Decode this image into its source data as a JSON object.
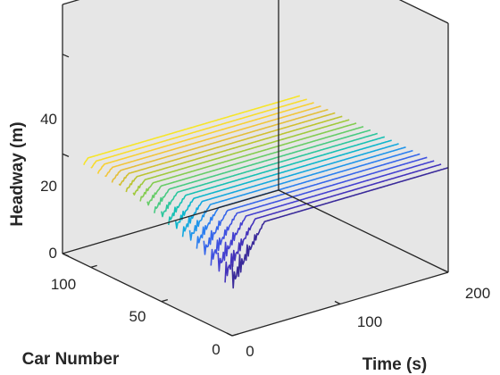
{
  "chart_data": {
    "type": "line",
    "subtype": "waterfall-3d",
    "title": "",
    "xlabel": "Time (s)",
    "ylabel": "Car Number",
    "zlabel": "Headway (m)",
    "xlim": [
      0,
      200
    ],
    "ylim": [
      0,
      120
    ],
    "zlim": [
      0,
      50
    ],
    "xticks": [
      "0",
      "100",
      "200"
    ],
    "yticks": [
      "0",
      "50",
      "100"
    ],
    "zticks": [
      "0",
      "20",
      "40"
    ],
    "grid": false,
    "legend": "none",
    "steady_headway": 21,
    "series": [
      {
        "car": 0,
        "color": "#3a2a9a",
        "dip_start": 0,
        "dip_end": 30,
        "amplitude": 12
      },
      {
        "car": 5,
        "color": "#4433bb",
        "dip_start": 0,
        "dip_end": 28,
        "amplitude": 11
      },
      {
        "car": 10,
        "color": "#4440d0",
        "dip_start": 0,
        "dip_end": 26,
        "amplitude": 10
      },
      {
        "car": 15,
        "color": "#3f52e0",
        "dip_start": 0,
        "dip_end": 24,
        "amplitude": 9
      },
      {
        "car": 20,
        "color": "#3666ea",
        "dip_start": 0,
        "dip_end": 22,
        "amplitude": 8
      },
      {
        "car": 25,
        "color": "#2b7ef0",
        "dip_start": 0,
        "dip_end": 20,
        "amplitude": 7
      },
      {
        "car": 30,
        "color": "#1f95ea",
        "dip_start": 0,
        "dip_end": 19,
        "amplitude": 6.5
      },
      {
        "car": 35,
        "color": "#14a8de",
        "dip_start": 0,
        "dip_end": 18,
        "amplitude": 6
      },
      {
        "car": 40,
        "color": "#0db6cc",
        "dip_start": 0,
        "dip_end": 17,
        "amplitude": 5.5
      },
      {
        "car": 45,
        "color": "#16c0b4",
        "dip_start": 0,
        "dip_end": 16,
        "amplitude": 5
      },
      {
        "car": 50,
        "color": "#2cc69c",
        "dip_start": 0,
        "dip_end": 15,
        "amplitude": 4.5
      },
      {
        "car": 55,
        "color": "#48ca82",
        "dip_start": 0,
        "dip_end": 14,
        "amplitude": 4
      },
      {
        "car": 60,
        "color": "#66cc68",
        "dip_start": 0,
        "dip_end": 13,
        "amplitude": 3.5
      },
      {
        "car": 65,
        "color": "#84cc50",
        "dip_start": 0,
        "dip_end": 12,
        "amplitude": 3
      },
      {
        "car": 70,
        "color": "#a0c93c",
        "dip_start": 0,
        "dip_end": 11,
        "amplitude": 2.8
      },
      {
        "car": 75,
        "color": "#bbc430",
        "dip_start": 0,
        "dip_end": 10,
        "amplitude": 2.5
      },
      {
        "car": 80,
        "color": "#d2bf30",
        "dip_start": 0,
        "dip_end": 9,
        "amplitude": 2.2
      },
      {
        "car": 85,
        "color": "#e4be3a",
        "dip_start": 0,
        "dip_end": 8,
        "amplitude": 2
      },
      {
        "car": 90,
        "color": "#f2c53a",
        "dip_start": 0,
        "dip_end": 7,
        "amplitude": 1.8
      },
      {
        "car": 95,
        "color": "#f8d034",
        "dip_start": 0,
        "dip_end": 6,
        "amplitude": 1.6
      },
      {
        "car": 100,
        "color": "#f8dc2e",
        "dip_start": 0,
        "dip_end": 5,
        "amplitude": 1.4
      },
      {
        "car": 105,
        "color": "#f6e52a",
        "dip_start": 0,
        "dip_end": 4,
        "amplitude": 1.2
      }
    ]
  }
}
